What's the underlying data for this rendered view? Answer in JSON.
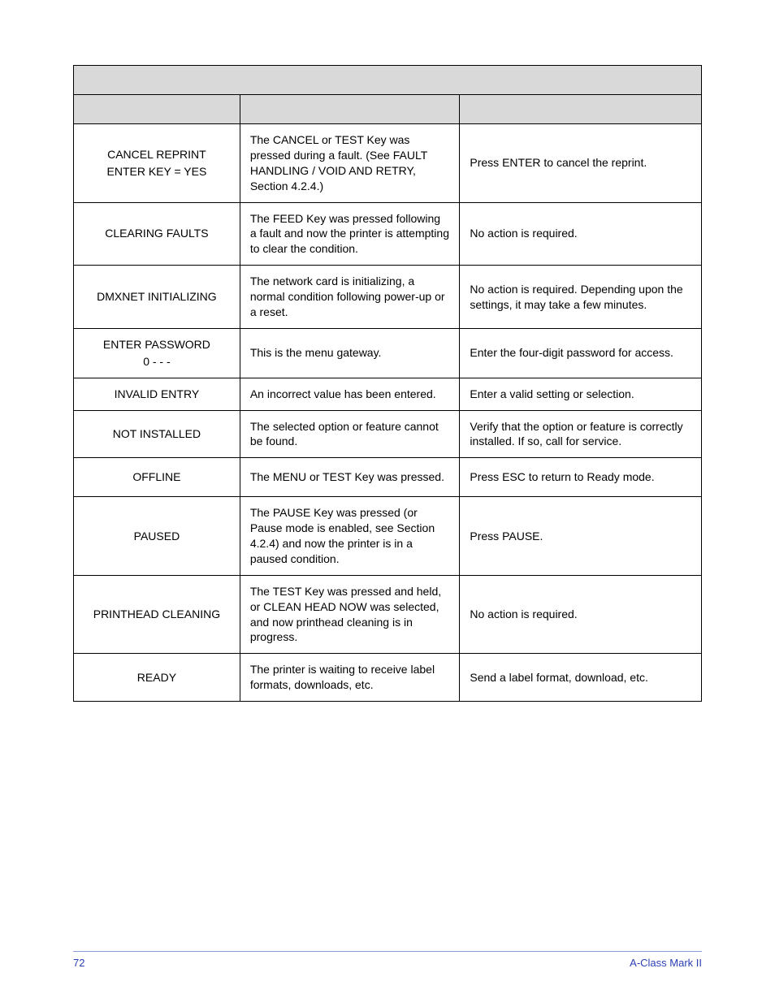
{
  "table": {
    "border_color": "#000000",
    "header_bg": "#d9d9d9",
    "font_family": "Verdana",
    "col_widths_pct": [
      26.5,
      35,
      38.5
    ],
    "rows": [
      {
        "message_line1": "CANCEL REPRINT",
        "message_line2": "ENTER KEY = YES",
        "description": "The CANCEL or TEST Key was pressed during a fault. (See FAULT HANDLING / VOID AND RETRY, Section 4.2.4.)",
        "action": "Press ENTER to cancel the reprint."
      },
      {
        "message_line1": "CLEARING FAULTS",
        "message_line2": "",
        "description": "The FEED Key was pressed following a fault and now the printer is attempting to clear the condition.",
        "action": "No action is required."
      },
      {
        "message_line1": "DMXNET INITIALIZING",
        "message_line2": "",
        "description": "The network card is initializing, a normal condition following power-up or a reset.",
        "action": "No action is required. Depending upon the settings, it may take a few minutes."
      },
      {
        "message_line1": "ENTER PASSWORD",
        "message_line2": "0 - - -",
        "description": "This is the menu gateway.",
        "action": "Enter the four-digit password for access."
      },
      {
        "message_line1": "INVALID ENTRY",
        "message_line2": "",
        "description": "An incorrect value has been entered.",
        "action": "Enter a valid setting or selection."
      },
      {
        "message_line1": "NOT INSTALLED",
        "message_line2": "",
        "description": "The selected option or feature cannot be found.",
        "action": "Verify that the option or feature is correctly installed. If so, call for service."
      },
      {
        "message_line1": "OFFLINE",
        "message_line2": "",
        "description": "The MENU or TEST Key was pressed.",
        "action": "Press ESC to return to Ready mode.",
        "tight": true
      },
      {
        "message_line1": "PAUSED",
        "message_line2": "",
        "description": "The PAUSE Key was pressed (or Pause mode is enabled, see Section 4.2.4) and now the printer is in a paused condition.",
        "action": "Press PAUSE.",
        "tight": true
      },
      {
        "message_line1": "PRINTHEAD CLEANING",
        "message_line2": "",
        "description": "The TEST Key was pressed and held, or CLEAN HEAD NOW was selected, and now printhead cleaning is in progress.",
        "action": "No action is required.",
        "tight": true
      },
      {
        "message_line1": "READY",
        "message_line2": "",
        "description": "The printer is waiting to receive label formats, downloads, etc.",
        "action": "Send a label format, download, etc.",
        "tight": true
      }
    ]
  },
  "footer": {
    "page_number": "72",
    "doc_title": "A-Class Mark II",
    "color": "#2b3fb5",
    "rule_color": "#8aa0d6"
  }
}
